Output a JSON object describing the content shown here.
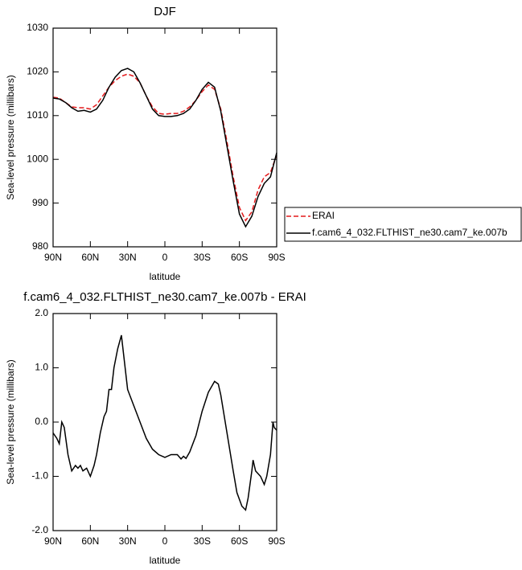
{
  "chart_data": [
    {
      "type": "line",
      "title": "DJF",
      "ylabel": "Sea-level pressure (millibars)",
      "xlabel": "latitude",
      "x": [
        90,
        85,
        80,
        75,
        70,
        65,
        60,
        55,
        50,
        45,
        40,
        35,
        30,
        25,
        20,
        15,
        10,
        5,
        0,
        -5,
        -10,
        -15,
        -20,
        -25,
        -30,
        -35,
        -40,
        -45,
        -50,
        -55,
        -60,
        -65,
        -70,
        -75,
        -80,
        -85,
        -90
      ],
      "series": [
        {
          "name": "ERAI",
          "color": "#e41a1c",
          "dash": true,
          "values": [
            1014.2,
            1014,
            1013,
            1012,
            1011.8,
            1011.8,
            1011.5,
            1012.5,
            1014.5,
            1016.5,
            1018,
            1019,
            1019.5,
            1019,
            1017.5,
            1014.5,
            1012,
            1010.5,
            1010.3,
            1010.5,
            1010.5,
            1011,
            1012,
            1013.5,
            1015.5,
            1017,
            1016,
            1011.5,
            1004,
            996,
            989,
            986,
            988,
            993,
            996,
            997,
            1001
          ]
        },
        {
          "name": "f.cam6_4_032.FLTHIST_ne30.cam7_ke.007b",
          "color": "#000000",
          "dash": false,
          "values": [
            1014,
            1013.8,
            1013,
            1011.8,
            1011,
            1011.2,
            1010.8,
            1011.5,
            1013.5,
            1016.5,
            1018.8,
            1020.3,
            1020.8,
            1020,
            1017.5,
            1014.5,
            1011.5,
            1010,
            1009.8,
            1009.8,
            1010,
            1010.5,
            1011.5,
            1013.5,
            1016,
            1017.6,
            1016.5,
            1011,
            1003,
            995,
            987.5,
            984.6,
            987,
            991.5,
            994.5,
            996,
            1001.5
          ]
        }
      ],
      "xlim": [
        90,
        -90
      ],
      "xticks": [
        {
          "value": 90,
          "label": "90N"
        },
        {
          "value": 60,
          "label": "60N"
        },
        {
          "value": 30,
          "label": "30N"
        },
        0,
        {
          "value": -30,
          "label": "30S"
        },
        {
          "value": -60,
          "label": "60S"
        },
        {
          "value": -90,
          "label": "90S"
        }
      ],
      "ylim": [
        980,
        1030
      ],
      "yticks": [
        980,
        990,
        1000,
        1010,
        1020,
        1030
      ],
      "legend": "right"
    },
    {
      "type": "line",
      "title": "f.cam6_4_032.FLTHIST_ne30.cam7_ke.007b - ERAI",
      "ylabel": "Sea-level pressure (millibars)",
      "xlabel": "latitude",
      "x": [
        90,
        87,
        85,
        83,
        81,
        78,
        75,
        72,
        70,
        68,
        66,
        63,
        60,
        57,
        55,
        52,
        49,
        47,
        45,
        43,
        41,
        38,
        35,
        33,
        30,
        25,
        20,
        15,
        10,
        5,
        0,
        -5,
        -10,
        -13,
        -15,
        -17,
        -20,
        -25,
        -30,
        -35,
        -40,
        -43,
        -45,
        -50,
        -55,
        -58,
        -62,
        -65,
        -67,
        -70,
        -71,
        -73,
        -77,
        -80,
        -82,
        -85,
        -87,
        -88,
        -90
      ],
      "values": [
        -0.2,
        -0.3,
        -0.4,
        0,
        -0.1,
        -0.6,
        -0.9,
        -0.8,
        -0.85,
        -0.8,
        -0.9,
        -0.85,
        -1,
        -0.8,
        -0.6,
        -0.2,
        0.1,
        0.2,
        0.6,
        0.6,
        1,
        1.35,
        1.6,
        1.2,
        0.6,
        0.3,
        0,
        -0.3,
        -0.5,
        -0.6,
        -0.65,
        -0.6,
        -0.6,
        -0.68,
        -0.63,
        -0.67,
        -0.55,
        -0.25,
        0.2,
        0.55,
        0.75,
        0.7,
        0.5,
        -0.2,
        -0.9,
        -1.3,
        -1.55,
        -1.62,
        -1.4,
        -0.9,
        -0.7,
        -0.9,
        -1,
        -1.15,
        -1,
        -0.6,
        0,
        -0.1,
        -0.15
      ],
      "color": "#000000",
      "xlim": [
        90,
        -90
      ],
      "xticks": [
        {
          "value": 90,
          "label": "90N"
        },
        {
          "value": 60,
          "label": "60N"
        },
        {
          "value": 30,
          "label": "30N"
        },
        0,
        {
          "value": -30,
          "label": "30S"
        },
        {
          "value": -60,
          "label": "60S"
        },
        {
          "value": -90,
          "label": "90S"
        }
      ],
      "ylim": [
        -2,
        2
      ],
      "yticks": [
        {
          "value": -2,
          "label": "-2.0"
        },
        {
          "value": -1,
          "label": "-1.0"
        },
        {
          "value": 0,
          "label": "0.0"
        },
        {
          "value": 1,
          "label": "1.0"
        },
        {
          "value": 2,
          "label": "2.0"
        }
      ]
    }
  ]
}
